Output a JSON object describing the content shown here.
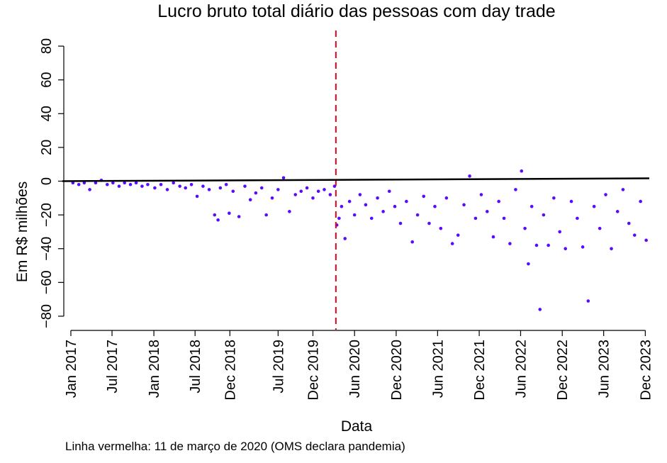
{
  "chart_data": {
    "type": "scatter",
    "title": "Lucro bruto total diário das pessoas com day trade",
    "xlabel": "Data",
    "ylabel": "Em R$ milhões",
    "ylim": [
      -88,
      88
    ],
    "xlim": [
      "2016-12-01",
      "2023-12-31"
    ],
    "y_ticks": [
      -80,
      -60,
      -40,
      -20,
      0,
      20,
      40,
      60,
      80
    ],
    "x_ticks": [
      {
        "label": "Jan 2017",
        "date": "2017-01-01"
      },
      {
        "label": "Jul 2017",
        "date": "2017-07-01"
      },
      {
        "label": "Jan 2018",
        "date": "2018-01-01"
      },
      {
        "label": "Jul 2018",
        "date": "2018-07-01"
      },
      {
        "label": "Dec 2018",
        "date": "2018-12-01"
      },
      {
        "label": "Jul 2019",
        "date": "2019-07-01"
      },
      {
        "label": "Dec 2019",
        "date": "2019-12-01"
      },
      {
        "label": "Jun 2020",
        "date": "2020-06-01"
      },
      {
        "label": "Dec 2020",
        "date": "2020-12-01"
      },
      {
        "label": "Jun 2021",
        "date": "2021-06-01"
      },
      {
        "label": "Dec 2021",
        "date": "2021-12-01"
      },
      {
        "label": "Jun 2022",
        "date": "2022-06-01"
      },
      {
        "label": "Dec 2022",
        "date": "2022-12-01"
      },
      {
        "label": "Jun 2023",
        "date": "2023-06-01"
      },
      {
        "label": "Dec 2023",
        "date": "2023-12-01"
      }
    ],
    "reference_lines": {
      "horizontal": {
        "y": 0,
        "color": "#000000",
        "style": "solid"
      },
      "vertical": {
        "date": "2020-03-11",
        "color": "#e8001c",
        "style": "dashed"
      }
    },
    "point_color": "#5b0aff",
    "grid": false,
    "points": [
      {
        "date": "2017-01-10",
        "y": -1
      },
      {
        "date": "2017-02-05",
        "y": -2
      },
      {
        "date": "2017-03-01",
        "y": -1
      },
      {
        "date": "2017-03-25",
        "y": -5
      },
      {
        "date": "2017-04-20",
        "y": -1
      },
      {
        "date": "2017-05-15",
        "y": 0.5
      },
      {
        "date": "2017-06-10",
        "y": -2
      },
      {
        "date": "2017-07-05",
        "y": -1
      },
      {
        "date": "2017-08-01",
        "y": -3
      },
      {
        "date": "2017-08-25",
        "y": -1
      },
      {
        "date": "2017-09-20",
        "y": -2
      },
      {
        "date": "2017-10-15",
        "y": -1
      },
      {
        "date": "2017-11-10",
        "y": -3
      },
      {
        "date": "2017-12-05",
        "y": -2
      },
      {
        "date": "2018-01-05",
        "y": -4
      },
      {
        "date": "2018-02-01",
        "y": -2
      },
      {
        "date": "2018-03-01",
        "y": -5
      },
      {
        "date": "2018-03-28",
        "y": -1
      },
      {
        "date": "2018-04-25",
        "y": -3
      },
      {
        "date": "2018-05-20",
        "y": -4
      },
      {
        "date": "2018-06-15",
        "y": -2
      },
      {
        "date": "2018-07-10",
        "y": -9
      },
      {
        "date": "2018-08-05",
        "y": -3
      },
      {
        "date": "2018-09-01",
        "y": -5
      },
      {
        "date": "2018-09-25",
        "y": -20
      },
      {
        "date": "2018-10-10",
        "y": -23
      },
      {
        "date": "2018-10-20",
        "y": -4
      },
      {
        "date": "2018-11-15",
        "y": -2
      },
      {
        "date": "2018-11-28",
        "y": -19
      },
      {
        "date": "2018-12-15",
        "y": -6
      },
      {
        "date": "2019-01-10",
        "y": -21
      },
      {
        "date": "2019-02-05",
        "y": -3
      },
      {
        "date": "2019-03-01",
        "y": -11
      },
      {
        "date": "2019-03-25",
        "y": -7
      },
      {
        "date": "2019-04-20",
        "y": -4
      },
      {
        "date": "2019-05-10",
        "y": -20
      },
      {
        "date": "2019-06-05",
        "y": -10
      },
      {
        "date": "2019-07-01",
        "y": -5
      },
      {
        "date": "2019-07-25",
        "y": 2
      },
      {
        "date": "2019-08-20",
        "y": -18
      },
      {
        "date": "2019-09-15",
        "y": -8
      },
      {
        "date": "2019-10-10",
        "y": -6
      },
      {
        "date": "2019-11-05",
        "y": -4
      },
      {
        "date": "2019-12-01",
        "y": -10
      },
      {
        "date": "2019-12-25",
        "y": -6
      },
      {
        "date": "2020-01-20",
        "y": -5
      },
      {
        "date": "2020-02-15",
        "y": -8
      },
      {
        "date": "2020-03-05",
        "y": -3
      },
      {
        "date": "2020-03-15",
        "y": -26
      },
      {
        "date": "2020-03-25",
        "y": -22
      },
      {
        "date": "2020-04-05",
        "y": -15
      },
      {
        "date": "2020-04-20",
        "y": -34
      },
      {
        "date": "2020-05-10",
        "y": -12
      },
      {
        "date": "2020-06-01",
        "y": -20
      },
      {
        "date": "2020-06-25",
        "y": -8
      },
      {
        "date": "2020-07-20",
        "y": -14
      },
      {
        "date": "2020-08-15",
        "y": -22
      },
      {
        "date": "2020-09-10",
        "y": -10
      },
      {
        "date": "2020-10-05",
        "y": -18
      },
      {
        "date": "2020-11-01",
        "y": -6
      },
      {
        "date": "2020-11-25",
        "y": -15
      },
      {
        "date": "2020-12-20",
        "y": -25
      },
      {
        "date": "2021-01-15",
        "y": -12
      },
      {
        "date": "2021-02-10",
        "y": -36
      },
      {
        "date": "2021-03-05",
        "y": -20
      },
      {
        "date": "2021-04-01",
        "y": -9
      },
      {
        "date": "2021-04-25",
        "y": -25
      },
      {
        "date": "2021-05-20",
        "y": -15
      },
      {
        "date": "2021-06-15",
        "y": -28
      },
      {
        "date": "2021-07-10",
        "y": -10
      },
      {
        "date": "2021-08-05",
        "y": -37
      },
      {
        "date": "2021-08-30",
        "y": -32
      },
      {
        "date": "2021-09-25",
        "y": -14
      },
      {
        "date": "2021-10-20",
        "y": 3
      },
      {
        "date": "2021-11-15",
        "y": -22
      },
      {
        "date": "2021-12-10",
        "y": -8
      },
      {
        "date": "2022-01-05",
        "y": -18
      },
      {
        "date": "2022-02-01",
        "y": -33
      },
      {
        "date": "2022-02-25",
        "y": -12
      },
      {
        "date": "2022-03-20",
        "y": -22
      },
      {
        "date": "2022-04-15",
        "y": -37
      },
      {
        "date": "2022-05-10",
        "y": -5
      },
      {
        "date": "2022-06-05",
        "y": 6
      },
      {
        "date": "2022-06-20",
        "y": -28
      },
      {
        "date": "2022-07-05",
        "y": -49
      },
      {
        "date": "2022-07-20",
        "y": -15
      },
      {
        "date": "2022-08-10",
        "y": -38
      },
      {
        "date": "2022-08-25",
        "y": -76
      },
      {
        "date": "2022-09-10",
        "y": -20
      },
      {
        "date": "2022-10-01",
        "y": -38
      },
      {
        "date": "2022-10-25",
        "y": -10
      },
      {
        "date": "2022-11-20",
        "y": -30
      },
      {
        "date": "2022-12-15",
        "y": -40
      },
      {
        "date": "2023-01-10",
        "y": -12
      },
      {
        "date": "2023-02-05",
        "y": -22
      },
      {
        "date": "2023-03-01",
        "y": -39
      },
      {
        "date": "2023-03-25",
        "y": -71
      },
      {
        "date": "2023-04-20",
        "y": -15
      },
      {
        "date": "2023-05-15",
        "y": -28
      },
      {
        "date": "2023-06-10",
        "y": -8
      },
      {
        "date": "2023-07-05",
        "y": -40
      },
      {
        "date": "2023-08-01",
        "y": -18
      },
      {
        "date": "2023-08-25",
        "y": -5
      },
      {
        "date": "2023-09-20",
        "y": -25
      },
      {
        "date": "2023-10-15",
        "y": -32
      },
      {
        "date": "2023-11-10",
        "y": -12
      },
      {
        "date": "2023-12-05",
        "y": -35
      }
    ]
  },
  "caption": "Linha vermelha: 11 de março de 2020 (OMS declara pandemia)"
}
